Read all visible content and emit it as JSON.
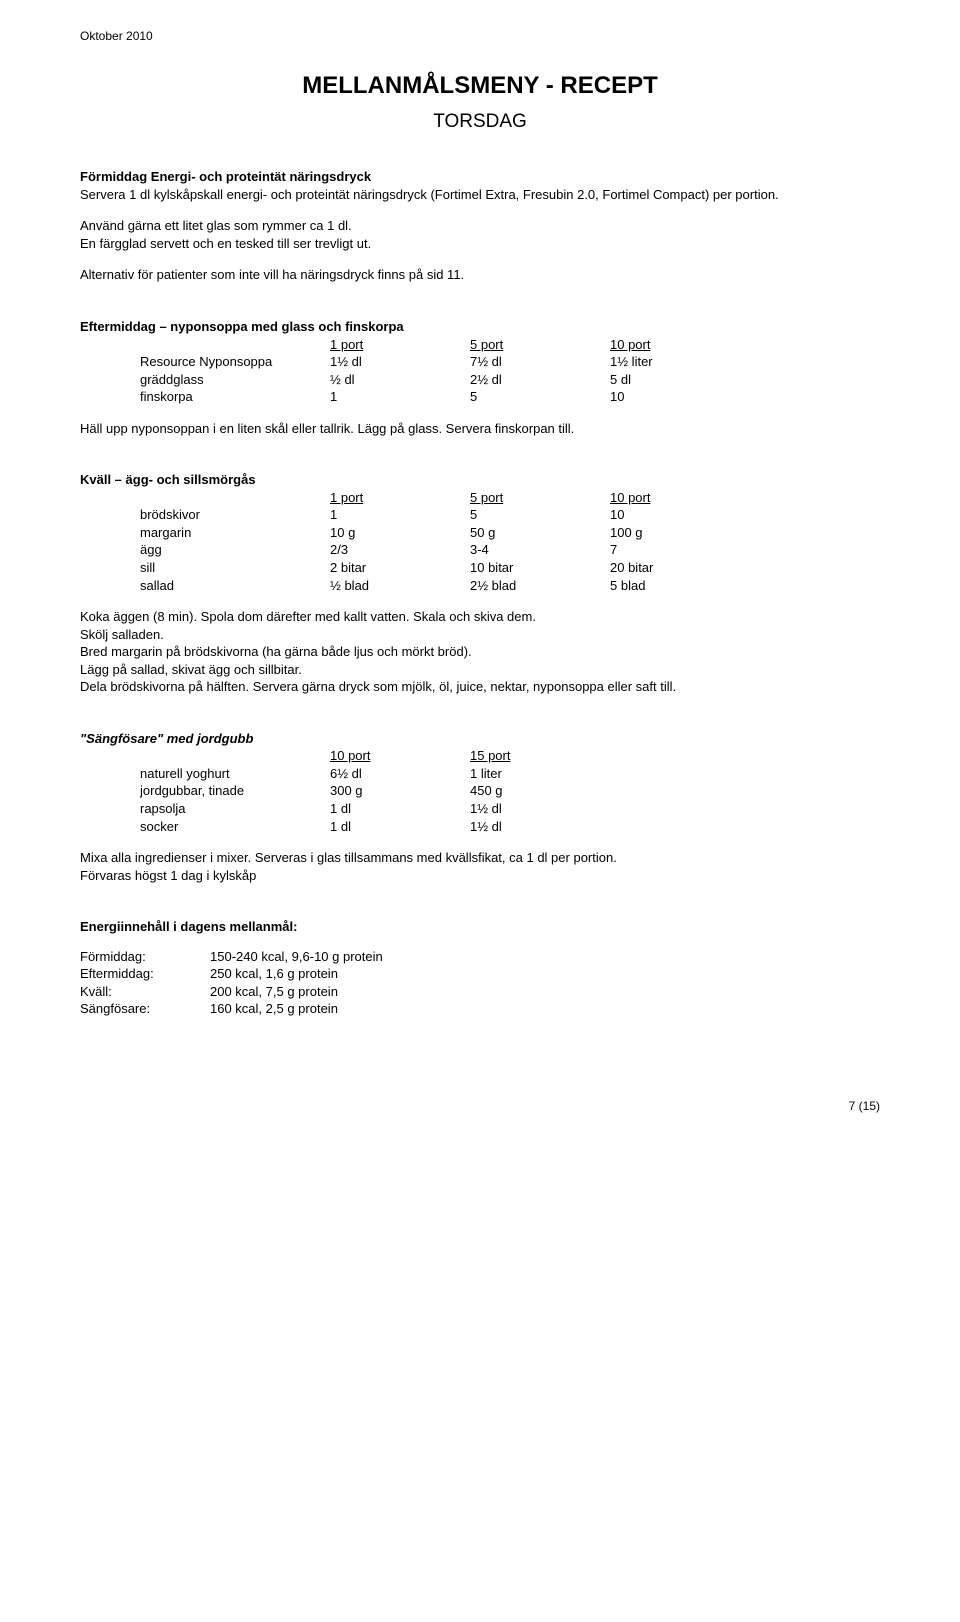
{
  "top_date": "Oktober 2010",
  "main_title": "MELLANMÅLSMENY - RECEPT",
  "subtitle": "TORSDAG",
  "formiddag": {
    "heading": "Förmiddag Energi- och proteintät näringsdryck",
    "p1": "Servera 1 dl kylskåpskall energi- och proteintät näringsdryck (Fortimel Extra, Fresubin 2.0, Fortimel Compact) per portion.",
    "p2a": "Använd gärna ett litet glas som rymmer ca 1 dl.",
    "p2b": "En färgglad servett och en tesked till ser trevligt ut.",
    "p3": "Alternativ för patienter som inte vill ha näringsdryck finns på sid 11."
  },
  "eftermiddag": {
    "heading": "Eftermiddag – nyponsoppa med glass och finskorpa",
    "cols": [
      "1 port",
      "5 port",
      "10 port"
    ],
    "rows": [
      {
        "name": "Resource Nyponsoppa",
        "v": [
          "1½ dl",
          "7½ dl",
          "1½ liter"
        ]
      },
      {
        "name": "gräddglass",
        "v": [
          "½ dl",
          "2½ dl",
          "5 dl"
        ]
      },
      {
        "name": "finskorpa",
        "v": [
          "1",
          "5",
          "10"
        ]
      }
    ],
    "instr": "Häll upp nyponsoppan i en liten skål eller tallrik. Lägg på glass. Servera finskorpan till."
  },
  "kvall": {
    "heading": "Kväll – ägg- och sillsmörgås",
    "cols": [
      "1 port",
      "5 port",
      "10 port"
    ],
    "rows": [
      {
        "name": "brödskivor",
        "v": [
          "1",
          "5",
          "10"
        ]
      },
      {
        "name": "margarin",
        "v": [
          "10 g",
          "50 g",
          "100 g"
        ]
      },
      {
        "name": "ägg",
        "v": [
          "2/3",
          "3-4",
          "7"
        ]
      },
      {
        "name": "sill",
        "v": [
          "2 bitar",
          "10 bitar",
          "20 bitar"
        ]
      },
      {
        "name": "sallad",
        "v": [
          "½ blad",
          "2½ blad",
          "5 blad"
        ]
      }
    ],
    "instr": [
      "Koka äggen (8 min). Spola dom därefter med kallt vatten. Skala och skiva dem.",
      "Skölj salladen.",
      "Bred margarin på brödskivorna (ha gärna både ljus och mörkt bröd).",
      "Lägg på sallad, skivat ägg och sillbitar.",
      "Dela brödskivorna på hälften. Servera gärna dryck som mjölk, öl, juice, nektar, nyponsoppa eller saft till."
    ]
  },
  "sangfosare": {
    "heading": "\"Sängfösare\" med jordgubb",
    "cols": [
      "10 port",
      "15 port"
    ],
    "rows": [
      {
        "name": "naturell yoghurt",
        "v": [
          "6½ dl",
          "1 liter"
        ]
      },
      {
        "name": "jordgubbar, tinade",
        "v": [
          "300 g",
          "450 g"
        ]
      },
      {
        "name": "rapsolja",
        "v": [
          "1 dl",
          "1½ dl"
        ]
      },
      {
        "name": "socker",
        "v": [
          "1 dl",
          "1½ dl"
        ]
      }
    ],
    "instr": [
      "Mixa alla ingredienser i mixer. Serveras i glas tillsammans med kvällsfikat, ca 1 dl per portion.",
      "Förvaras högst 1 dag i kylskåp"
    ]
  },
  "energy": {
    "heading": "Energiinnehåll i dagens mellanmål:",
    "rows": [
      {
        "label": "Förmiddag:",
        "val": "150-240 kcal, 9,6-10 g protein"
      },
      {
        "label": "Eftermiddag:",
        "val": "250 kcal, 1,6 g protein"
      },
      {
        "label": "Kväll:",
        "val": "200 kcal, 7,5 g protein"
      },
      {
        "label": "Sängfösare:",
        "val": "160 kcal, 2,5 g protein"
      }
    ]
  },
  "footer": "7 (15)"
}
